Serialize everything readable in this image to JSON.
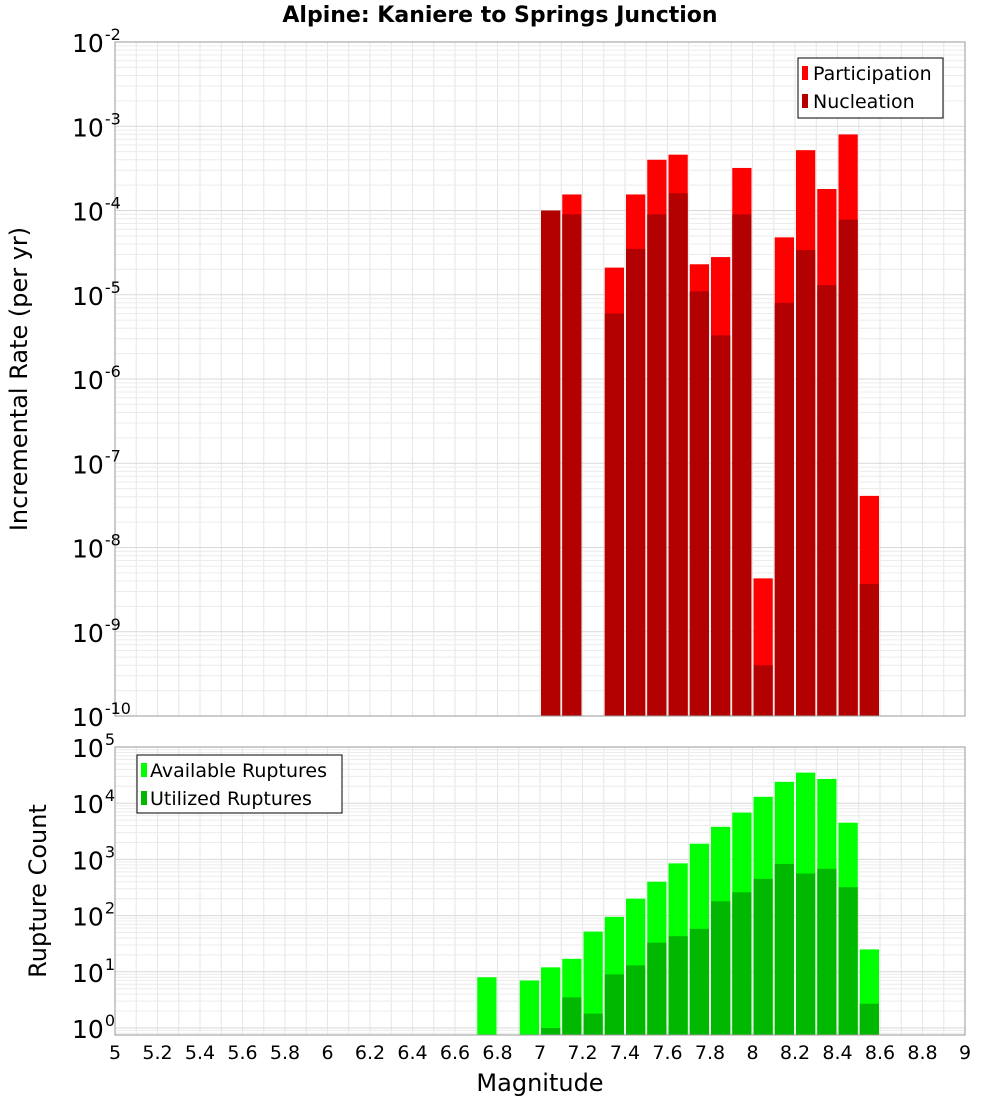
{
  "chart_data": [
    {
      "type": "bar",
      "title": "Alpine: Kaniere to Springs Junction",
      "xlabel": "",
      "ylabel": "Incremental Rate (per yr)",
      "yscale": "log",
      "xlim": [
        5,
        9
      ],
      "ylim": [
        1e-10,
        0.01
      ],
      "ytick_labels": [
        {
          "base": "10",
          "exp": "-2"
        },
        {
          "base": "10",
          "exp": "-3"
        },
        {
          "base": "10",
          "exp": "-4"
        },
        {
          "base": "10",
          "exp": "-5"
        },
        {
          "base": "10",
          "exp": "-6"
        },
        {
          "base": "10",
          "exp": "-7"
        },
        {
          "base": "10",
          "exp": "-8"
        },
        {
          "base": "10",
          "exp": "-9"
        },
        {
          "base": "10",
          "exp": "-10"
        }
      ],
      "legend_position": "top-right",
      "grid": true,
      "x": [
        7.05,
        7.15,
        7.25,
        7.35,
        7.45,
        7.55,
        7.65,
        7.75,
        7.85,
        7.95,
        8.05,
        8.15,
        8.25,
        8.35,
        8.45,
        8.55
      ],
      "series": [
        {
          "name": "Participation",
          "color": "#ff0000",
          "values": [
            0.0001,
            0.000155,
            null,
            2.1e-05,
            0.000155,
            0.0004,
            0.00046,
            2.3e-05,
            2.8e-05,
            0.00032,
            4.3e-09,
            4.8e-05,
            0.00052,
            0.00018,
            0.0008,
            4.1e-08
          ]
        },
        {
          "name": "Nucleation",
          "color": "#b30000",
          "values": [
            0.0001,
            9e-05,
            null,
            6e-06,
            3.5e-05,
            9e-05,
            0.00016,
            1.1e-05,
            3.3e-06,
            9e-05,
            4e-10,
            8e-06,
            3.4e-05,
            1.3e-05,
            7.8e-05,
            3.7e-09
          ]
        }
      ]
    },
    {
      "type": "bar",
      "title": "",
      "xlabel": "Magnitude",
      "ylabel": "Rupture Count",
      "yscale": "log",
      "xlim": [
        5,
        9
      ],
      "ylim": [
        0.75,
        100000
      ],
      "xtick_labels": [
        "5",
        "5.2",
        "5.4",
        "5.6",
        "5.8",
        "6",
        "6.2",
        "6.4",
        "6.6",
        "6.8",
        "7",
        "7.2",
        "7.4",
        "7.6",
        "7.8",
        "8",
        "8.2",
        "8.4",
        "8.6",
        "8.8",
        "9"
      ],
      "ytick_labels": [
        {
          "base": "10",
          "exp": "5"
        },
        {
          "base": "10",
          "exp": "4"
        },
        {
          "base": "10",
          "exp": "3"
        },
        {
          "base": "10",
          "exp": "2"
        },
        {
          "base": "10",
          "exp": "1"
        },
        {
          "base": "10",
          "exp": "0"
        }
      ],
      "legend_position": "top-left",
      "grid": true,
      "x": [
        6.75,
        6.85,
        6.95,
        7.05,
        7.15,
        7.25,
        7.35,
        7.45,
        7.55,
        7.65,
        7.75,
        7.85,
        7.95,
        8.05,
        8.15,
        8.25,
        8.35,
        8.45,
        8.55
      ],
      "series": [
        {
          "name": "Available Ruptures",
          "color": "#00ff00",
          "values": [
            8,
            null,
            7,
            12,
            17,
            52,
            95,
            200,
            400,
            850,
            1900,
            3800,
            6800,
            13000,
            24000,
            35000,
            27000,
            4500,
            25
          ]
        },
        {
          "name": "Utilized Ruptures",
          "color": "#00b800",
          "values": [
            null,
            null,
            null,
            1,
            3.5,
            1.8,
            9,
            13,
            33,
            43,
            58,
            180,
            260,
            450,
            830,
            560,
            680,
            320,
            2.7
          ]
        }
      ]
    }
  ]
}
